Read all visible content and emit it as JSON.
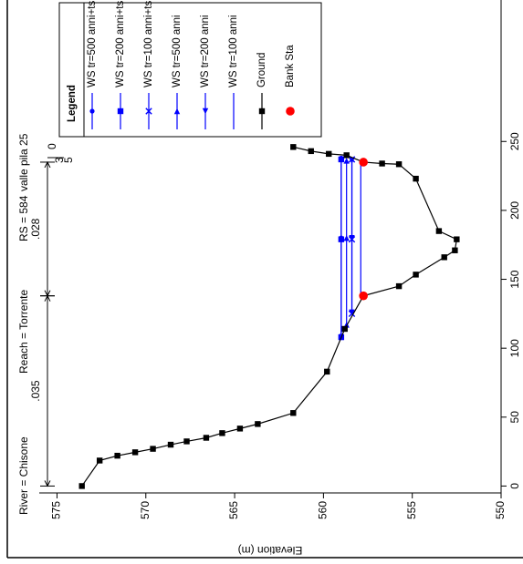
{
  "chart_data": {
    "type": "line",
    "title_parts": [
      "River = Chisone",
      "Reach = Torrente",
      "RS = 584",
      "valle pila 25"
    ],
    "ylabel": "Elevation (m)",
    "xlim": [
      -5,
      350
    ],
    "xticks": [
      0,
      50,
      100,
      150,
      200,
      250
    ],
    "ylim": [
      550,
      576
    ],
    "yticks": [
      550,
      555,
      560,
      565,
      570,
      575
    ],
    "mannings_n": [
      {
        "label": ".035",
        "from": 0,
        "to": 138
      },
      {
        "label": ".028",
        "from": 138,
        "to": 235
      }
    ],
    "scale_labels": [
      "0",
      "3",
      "5"
    ],
    "legend_title": "Legend",
    "legend": "upper right",
    "series": [
      {
        "name": "WS tr=500 anni+ts",
        "color": "#0000ff",
        "marker": "circle",
        "line": true,
        "x": [
          109,
          180,
          238
        ],
        "values": [
          559.0,
          559.0,
          559.0
        ]
      },
      {
        "name": "WS tr=200 anni+ts",
        "color": "#0000ff",
        "marker": "square",
        "line": true,
        "x": [
          108,
          179,
          237
        ],
        "values": [
          559.0,
          559.0,
          559.0
        ]
      },
      {
        "name": "WS tr=100 anni+ts",
        "color": "#0000ff",
        "marker": "x",
        "line": true,
        "x": [
          125,
          179,
          237
        ],
        "values": [
          558.4,
          558.4,
          558.4
        ]
      },
      {
        "name": "WS tr=500 anni",
        "color": "#0000ff",
        "marker": "triangle-right",
        "line": true,
        "x": [
          117,
          180,
          236
        ],
        "values": [
          558.7,
          558.7,
          558.7
        ]
      },
      {
        "name": "WS tr=200 anni",
        "color": "#0000ff",
        "marker": "triangle-left",
        "line": true,
        "x": [
          126,
          180,
          236
        ],
        "values": [
          558.4,
          558.4,
          558.4
        ]
      },
      {
        "name": "WS tr=100 anni",
        "color": "#0000ff",
        "marker": "none",
        "line": true,
        "x": [
          137,
          236
        ],
        "values": [
          557.9,
          557.9
        ]
      },
      {
        "name": "Ground",
        "color": "#000000",
        "marker": "square",
        "line": true,
        "x": [
          0,
          18.5,
          22,
          24.5,
          27,
          30,
          32.4,
          35,
          38.4,
          41.7,
          45,
          53,
          83,
          114,
          138,
          145,
          153.4,
          166,
          171,
          179,
          185,
          223,
          233.5,
          234,
          235,
          240,
          241,
          243,
          246
        ],
        "values": [
          573.6,
          572.6,
          571.6,
          570.6,
          569.6,
          568.6,
          567.7,
          566.6,
          565.7,
          564.7,
          563.7,
          561.7,
          559.8,
          558.8,
          557.75,
          555.75,
          554.8,
          553.2,
          552.6,
          552.5,
          553.5,
          554.8,
          555.75,
          556.7,
          557.75,
          558.7,
          559.7,
          560.7,
          561.7
        ]
      },
      {
        "name": "Bank Sta",
        "color": "#ff0000",
        "marker": "big-circle",
        "line": false,
        "x": [
          138,
          235
        ],
        "values": [
          557.75,
          557.75
        ]
      }
    ]
  }
}
